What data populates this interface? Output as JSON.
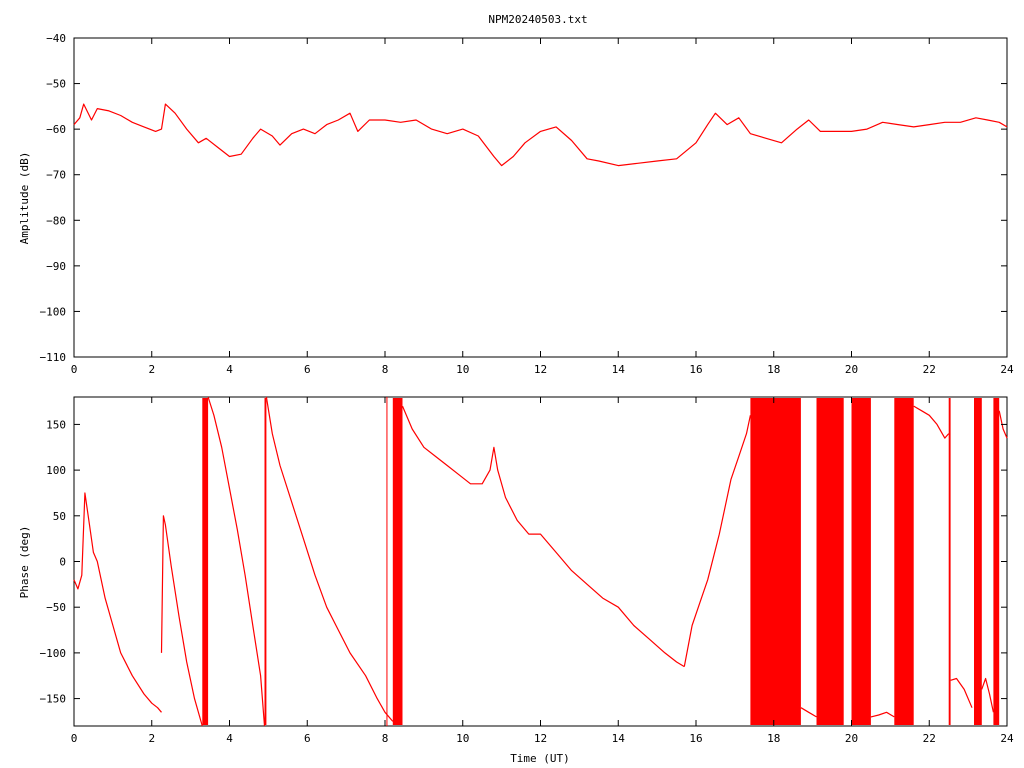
{
  "title": "NPM20240503.txt",
  "colors": {
    "series": "#ff0000",
    "axes": "#000000",
    "background": "#ffffff"
  },
  "chart_data": [
    {
      "type": "line",
      "ylabel": "Amplitude (dB)",
      "xlabel": "",
      "xlim": [
        0,
        24
      ],
      "ylim": [
        -110,
        -40
      ],
      "xticks": [
        0,
        2,
        4,
        6,
        8,
        10,
        12,
        14,
        16,
        18,
        20,
        22,
        24
      ],
      "xtick_labels": [
        "0",
        "2",
        "4",
        "6",
        "8",
        "10",
        "12",
        "14",
        "16",
        "18",
        "20",
        "22",
        "24"
      ],
      "yticks": [
        -110,
        -100,
        -90,
        -80,
        -70,
        -60,
        -50,
        -40
      ],
      "ytick_labels": [
        "−110",
        "−100",
        "−90",
        "−80",
        "−70",
        "−60",
        "−50",
        "−40"
      ],
      "grid": false,
      "series": [
        {
          "x": [
            0,
            0.15,
            0.25,
            0.45,
            0.6,
            0.9,
            1.2,
            1.5,
            1.8,
            2.1,
            2.25,
            2.35,
            2.6,
            2.9,
            3.2,
            3.4,
            3.7,
            4.0,
            4.3,
            4.6,
            4.8,
            5.1,
            5.3,
            5.6,
            5.9,
            6.2,
            6.5,
            6.8,
            7.1,
            7.3,
            7.6,
            8.0,
            8.4,
            8.8,
            9.2,
            9.6,
            10.0,
            10.4,
            10.8,
            11.0,
            11.3,
            11.6,
            12.0,
            12.4,
            12.8,
            13.2,
            13.5,
            14.0,
            14.5,
            15.0,
            15.5,
            16.0,
            16.3,
            16.5,
            16.8,
            17.1,
            17.4,
            17.8,
            18.2,
            18.6,
            18.9,
            19.2,
            19.6,
            20.0,
            20.4,
            20.8,
            21.2,
            21.6,
            22.0,
            22.4,
            22.8,
            23.2,
            23.5,
            23.8,
            24.0
          ],
          "y": [
            -59,
            -57.5,
            -54.5,
            -58,
            -55.5,
            -56,
            -57,
            -58.5,
            -59.5,
            -60.5,
            -60,
            -54.5,
            -56.5,
            -60,
            -63,
            -62,
            -64,
            -66,
            -65.5,
            -62,
            -60,
            -61.5,
            -63.5,
            -61,
            -60,
            -61,
            -59,
            -58,
            -56.5,
            -60.5,
            -58,
            -58,
            -58.5,
            -58,
            -60,
            -61,
            -60,
            -61.5,
            -66,
            -68,
            -66,
            -63,
            -60.5,
            -59.5,
            -62.5,
            -66.5,
            -67,
            -68,
            -67.5,
            -67,
            -66.5,
            -63,
            -59,
            -56.5,
            -59,
            -57.5,
            -61,
            -62,
            -63,
            -60,
            -58,
            -60.5,
            -60.5,
            -60.5,
            -60,
            -58.5,
            -59,
            -59.5,
            -59,
            -58.5,
            -58.5,
            -57.5,
            -58,
            -58.5,
            -59.5
          ]
        }
      ]
    },
    {
      "type": "line",
      "ylabel": "Phase (deg)",
      "xlabel": "Time (UT)",
      "xlim": [
        0,
        24
      ],
      "ylim": [
        -180,
        180
      ],
      "xticks": [
        0,
        2,
        4,
        6,
        8,
        10,
        12,
        14,
        16,
        18,
        20,
        22,
        24
      ],
      "xtick_labels": [
        "0",
        "2",
        "4",
        "6",
        "8",
        "10",
        "12",
        "14",
        "16",
        "18",
        "20",
        "22",
        "24"
      ],
      "yticks": [
        -150,
        -100,
        -50,
        0,
        50,
        100,
        150
      ],
      "ytick_labels": [
        "−150",
        "−100",
        "−50",
        "0",
        "50",
        "100",
        "150"
      ],
      "grid": false,
      "series": [
        {
          "segments": [
            {
              "x": [
                0,
                0.1,
                0.2,
                0.28,
                0.4,
                0.5,
                0.6,
                0.8,
                1.0,
                1.2,
                1.5,
                1.8,
                2.0,
                2.15,
                2.25
              ],
              "y": [
                -20,
                -30,
                -15,
                75,
                40,
                10,
                0,
                -40,
                -70,
                -100,
                -125,
                -145,
                -155,
                -160,
                -165
              ]
            },
            {
              "x": [
                2.25,
                2.3,
                2.35,
                2.5,
                2.7,
                2.9,
                3.1,
                3.3
              ],
              "y": [
                -100,
                50,
                40,
                -5,
                -60,
                -110,
                -150,
                -180
              ]
            },
            {
              "x": [
                3.45,
                3.6,
                3.8,
                4.0,
                4.2,
                4.4,
                4.6,
                4.8,
                4.9
              ],
              "y": [
                180,
                160,
                125,
                80,
                35,
                -15,
                -70,
                -125,
                -180
              ]
            },
            {
              "x": [
                4.95,
                5.1,
                5.3,
                5.6,
                5.9,
                6.2,
                6.5,
                6.8,
                7.1,
                7.5,
                7.8,
                8.0,
                8.2
              ],
              "y": [
                180,
                140,
                105,
                65,
                25,
                -15,
                -50,
                -75,
                -100,
                -125,
                -150,
                -165,
                -175
              ]
            },
            {
              "x": [
                8.45,
                8.7,
                9.0,
                9.3,
                9.6,
                9.9,
                10.2,
                10.5,
                10.7,
                10.8,
                10.9,
                11.1,
                11.4,
                11.7,
                12.0,
                12.4,
                12.8,
                13.2,
                13.6,
                14.0,
                14.4,
                14.8,
                15.2,
                15.5,
                15.7
              ],
              "y": [
                170,
                145,
                125,
                115,
                105,
                95,
                85,
                85,
                100,
                125,
                100,
                70,
                45,
                30,
                30,
                10,
                -10,
                -25,
                -40,
                -50,
                -70,
                -85,
                -100,
                -110,
                -115
              ]
            },
            {
              "x": [
                15.7,
                15.9,
                16.1,
                16.3,
                16.6,
                16.9,
                17.1,
                17.3,
                17.4
              ],
              "y": [
                -115,
                -70,
                -45,
                -20,
                30,
                90,
                115,
                140,
                160
              ]
            },
            {
              "x": [
                18.7,
                18.9,
                19.1
              ],
              "y": [
                -160,
                -165,
                -170
              ]
            },
            {
              "x": [
                20.5,
                20.7,
                20.9,
                21.1
              ],
              "y": [
                -170,
                -168,
                -165,
                -170
              ]
            },
            {
              "x": [
                21.6,
                21.8,
                22.0,
                22.2,
                22.4,
                22.5
              ],
              "y": [
                170,
                165,
                160,
                150,
                135,
                140
              ]
            },
            {
              "x": [
                22.55,
                22.7,
                22.9,
                23.1
              ],
              "y": [
                -130,
                -128,
                -140,
                -160
              ]
            },
            {
              "x": [
                23.35,
                23.45,
                23.55,
                23.65
              ],
              "y": [
                -140,
                -128,
                -145,
                -165
              ]
            },
            {
              "x": [
                23.8,
                23.9,
                24.0
              ],
              "y": [
                165,
                145,
                135
              ]
            }
          ],
          "wrap_bands": [
            [
              3.3,
              3.45
            ],
            [
              4.9,
              4.95
            ],
            [
              8.2,
              8.45
            ],
            [
              17.4,
              18.7
            ],
            [
              19.1,
              19.8
            ],
            [
              20.0,
              20.5
            ],
            [
              21.1,
              21.6
            ],
            [
              22.5,
              22.55
            ],
            [
              23.15,
              23.35
            ],
            [
              23.65,
              23.8
            ]
          ],
          "wrap_lines": [
            8.05
          ]
        }
      ]
    }
  ]
}
